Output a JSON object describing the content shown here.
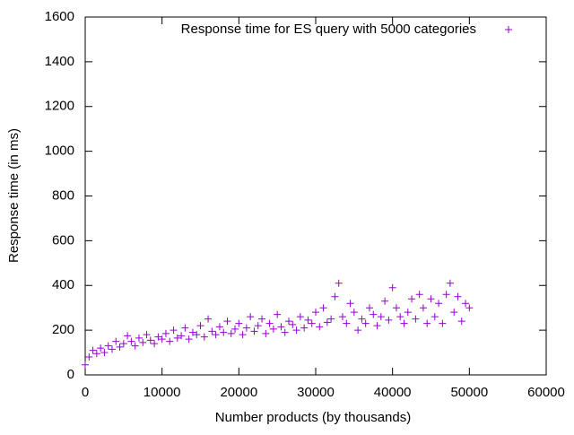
{
  "chart_data": {
    "type": "scatter",
    "xlabel": "Number products (by thousands)",
    "ylabel": "Response time (in ms)",
    "xlim": [
      0,
      60000
    ],
    "xticks": [
      0,
      10000,
      20000,
      30000,
      40000,
      50000,
      60000
    ],
    "ylim": [
      0,
      1600
    ],
    "yticks": [
      0,
      200,
      400,
      600,
      800,
      1000,
      1200,
      1400,
      1600
    ],
    "grid": false,
    "legend": "top-right",
    "x": [
      0,
      500,
      1000,
      1500,
      2000,
      2500,
      3000,
      3500,
      4000,
      4500,
      5000,
      5500,
      6000,
      6500,
      7000,
      7500,
      8000,
      8500,
      9000,
      9500,
      10000,
      10500,
      11000,
      11500,
      12000,
      12500,
      13000,
      13500,
      14000,
      14500,
      15000,
      15500,
      16000,
      16500,
      17000,
      17500,
      18000,
      18500,
      19000,
      19500,
      20000,
      20500,
      21000,
      21500,
      22000,
      22500,
      23000,
      23500,
      24000,
      24500,
      25000,
      25500,
      26000,
      26500,
      27000,
      27500,
      28000,
      28500,
      29000,
      29500,
      30000,
      30500,
      31000,
      31500,
      32000,
      32500,
      33000,
      33500,
      34000,
      34500,
      35000,
      35500,
      36000,
      36500,
      37000,
      37500,
      38000,
      38500,
      39000,
      39500,
      40000,
      40500,
      41000,
      41500,
      42000,
      42500,
      43000,
      43500,
      44000,
      44500,
      45000,
      45500,
      46000,
      46500,
      47000,
      47500,
      48000,
      48500,
      49000,
      49500,
      50000
    ],
    "series": [
      {
        "name": "Response time for ES query with 5000 categories",
        "color": "#9400d3",
        "values": [
          45,
          80,
          110,
          95,
          120,
          100,
          130,
          115,
          150,
          125,
          140,
          175,
          150,
          130,
          165,
          145,
          180,
          155,
          140,
          170,
          160,
          185,
          150,
          200,
          165,
          175,
          210,
          160,
          190,
          180,
          220,
          170,
          250,
          195,
          180,
          215,
          190,
          240,
          185,
          205,
          230,
          180,
          210,
          260,
          195,
          220,
          250,
          185,
          230,
          205,
          270,
          215,
          190,
          240,
          225,
          200,
          260,
          210,
          245,
          230,
          280,
          215,
          300,
          235,
          250,
          350,
          410,
          260,
          230,
          320,
          280,
          200,
          250,
          230,
          300,
          270,
          220,
          260,
          330,
          245,
          390,
          300,
          260,
          230,
          280,
          340,
          250,
          360,
          300,
          230,
          340,
          260,
          320,
          230,
          360,
          410,
          280,
          350,
          240,
          320,
          300
        ]
      }
    ]
  }
}
